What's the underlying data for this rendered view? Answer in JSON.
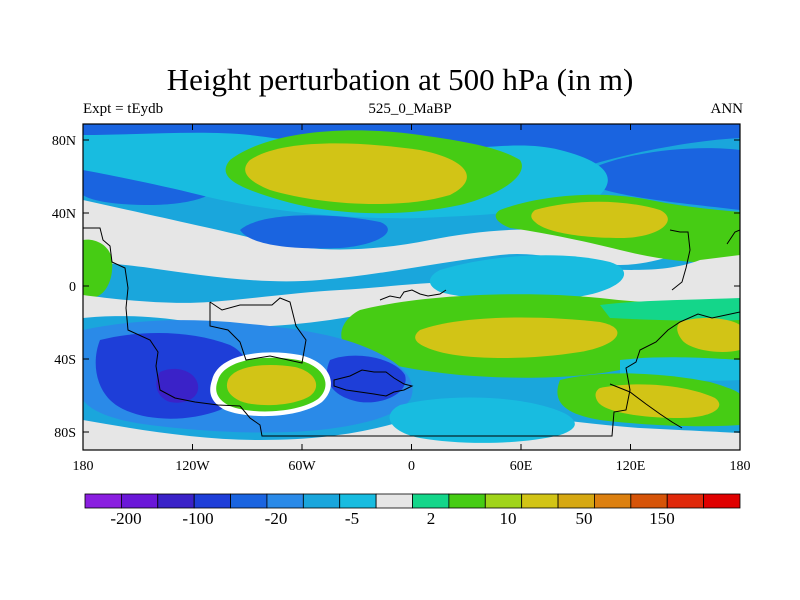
{
  "title": "Height perturbation at 500 hPa (in m)",
  "left_label": "Expt = tEydb",
  "center_label": "525_0_MaBP",
  "right_label": "ANN",
  "x_ticks": [
    "180",
    "120W",
    "60W",
    "0",
    "60E",
    "120E",
    "180"
  ],
  "y_ticks": [
    "80N",
    "40N",
    "0",
    "40S",
    "80S"
  ],
  "colorbar": {
    "colors": [
      "#8a1ee0",
      "#6a17d8",
      "#3a22c8",
      "#1e3ed8",
      "#1a64e0",
      "#2a8ae8",
      "#1aa6dc",
      "#18bce0",
      "#e6e6e6",
      "#14d68a",
      "#46cc14",
      "#a0d41a",
      "#d2c416",
      "#d6a812",
      "#dc8010",
      "#d65408",
      "#e0280a",
      "#e00000"
    ],
    "labels": [
      "-200",
      "-100",
      "-20",
      "-5",
      "2",
      "10",
      "50",
      "150"
    ]
  },
  "level_colors": {
    "deep_blue": "#1e3ed8",
    "blue": "#1a64e0",
    "mid_blue": "#2a8ae8",
    "light_blue": "#1aa6dc",
    "cyan": "#18bce0",
    "gray": "#e6e6e6",
    "green": "#46cc14",
    "yellow_green": "#a0d41a",
    "yellow": "#d2c416",
    "teal": "#14d68a",
    "purple": "#3a22c8"
  }
}
